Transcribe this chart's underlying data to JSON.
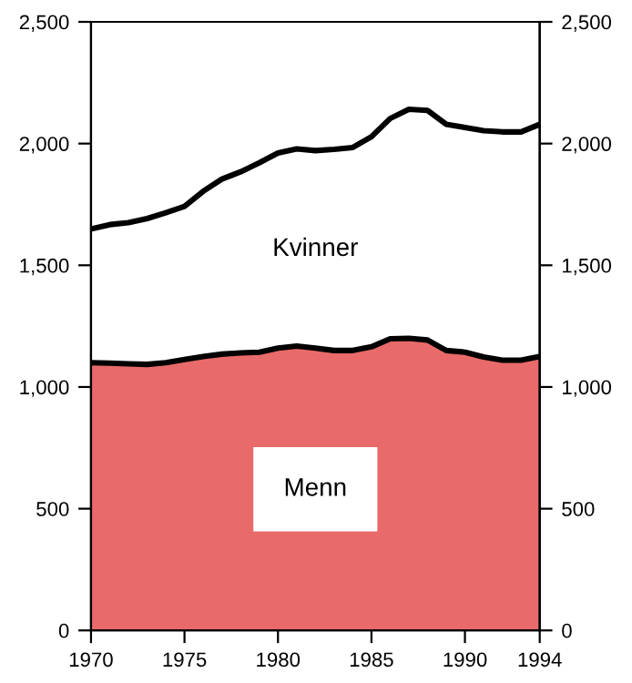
{
  "chart_data": {
    "type": "area",
    "stacked": true,
    "x": [
      1970,
      1971,
      1972,
      1973,
      1974,
      1975,
      1976,
      1977,
      1978,
      1979,
      1980,
      1981,
      1982,
      1983,
      1984,
      1985,
      1986,
      1987,
      1988,
      1989,
      1990,
      1991,
      1992,
      1993,
      1994
    ],
    "series": [
      {
        "name": "Menn",
        "color": "#e86a6a",
        "values": [
          1100,
          1098,
          1095,
          1093,
          1100,
          1113,
          1125,
          1135,
          1140,
          1143,
          1160,
          1168,
          1160,
          1150,
          1150,
          1165,
          1198,
          1200,
          1193,
          1150,
          1143,
          1123,
          1110,
          1110,
          1125
        ]
      },
      {
        "name": "Kvinner",
        "color": "#ffffff",
        "values": [
          549,
          569,
          580,
          599,
          616,
          629,
          679,
          719,
          744,
          778,
          801,
          810,
          811,
          826,
          834,
          863,
          905,
          941,
          943,
          929,
          923,
          930,
          938,
          938,
          954
        ]
      }
    ],
    "xlim": [
      1970,
      1994
    ],
    "xticks": [
      1970,
      1975,
      1980,
      1985,
      1990,
      1994
    ],
    "ylim": [
      0,
      2500
    ],
    "yticks": [
      0,
      500,
      {
        "value": 1000,
        "label": "1,000"
      },
      {
        "value": 1500,
        "label": "1,500"
      },
      {
        "value": 2000,
        "label": "2,000"
      },
      {
        "value": 2500,
        "label": "2,500"
      }
    ],
    "y2lim": [
      0,
      2500
    ],
    "y2ticks": [
      0,
      500,
      {
        "value": 1000,
        "label": "1,000"
      },
      {
        "value": 1500,
        "label": "1,500"
      },
      {
        "value": 2000,
        "label": "2,000"
      },
      {
        "value": 2500,
        "label": "2,500"
      }
    ],
    "legend": false,
    "grid": false
  }
}
